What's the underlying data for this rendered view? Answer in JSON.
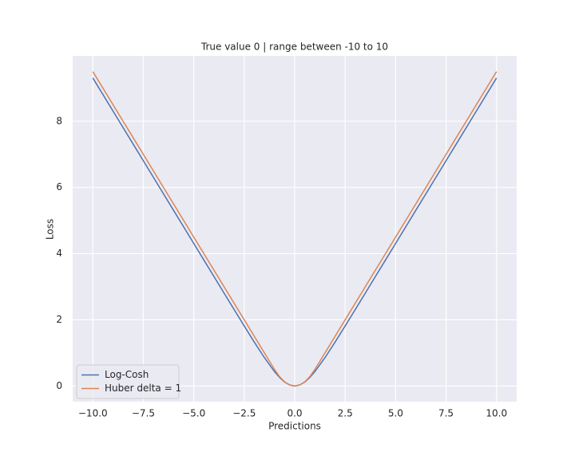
{
  "chart_data": {
    "type": "line",
    "title": "True value 0 | range between -10 to 10",
    "x_label": "Predictions",
    "y_label": "Loss",
    "x": [
      -10,
      -9.5,
      -9,
      -8.5,
      -8,
      -7.5,
      -7,
      -6.5,
      -6,
      -5.5,
      -5,
      -4.5,
      -4,
      -3.5,
      -3,
      -2.5,
      -2,
      -1.5,
      -1,
      -0.75,
      -0.5,
      -0.25,
      0,
      0.25,
      0.5,
      0.75,
      1,
      1.5,
      2,
      2.5,
      3,
      3.5,
      4,
      4.5,
      5,
      5.5,
      6,
      6.5,
      7,
      7.5,
      8,
      8.5,
      9,
      9.5,
      10
    ],
    "series": [
      {
        "name": "Log-Cosh",
        "color": "#4c72b0",
        "values": [
          9.30685,
          8.80685,
          8.30685,
          7.80685,
          7.30685,
          6.80685,
          6.30685,
          5.80685,
          5.30686,
          4.80686,
          4.3069,
          3.80698,
          3.30719,
          2.80776,
          2.30933,
          1.81357,
          1.325,
          0.85544,
          0.43378,
          0.25832,
          0.12011,
          0.03093,
          0,
          0.03093,
          0.12011,
          0.25832,
          0.43378,
          0.85544,
          1.325,
          1.81357,
          2.30933,
          2.80776,
          3.30719,
          3.80698,
          4.3069,
          4.80686,
          5.30686,
          5.80685,
          6.30685,
          6.80685,
          7.30685,
          7.80685,
          8.30685,
          8.80685,
          9.30685
        ]
      },
      {
        "name": "Huber delta = 1",
        "color": "#dd8452",
        "values": [
          9.5,
          9,
          8.5,
          8,
          7.5,
          7,
          6.5,
          6,
          5.5,
          5,
          4.5,
          4,
          3.5,
          3,
          2.5,
          2,
          1.5,
          1,
          0.5,
          0.28125,
          0.125,
          0.03125,
          0,
          0.03125,
          0.125,
          0.28125,
          0.5,
          1,
          1.5,
          2,
          2.5,
          3,
          3.5,
          4,
          4.5,
          5,
          5.5,
          6,
          6.5,
          7,
          7.5,
          8,
          8.5,
          9,
          9.5
        ]
      }
    ],
    "xlim": [
      -11,
      11
    ],
    "ylim": [
      -0.475,
      9.975
    ],
    "xticks": [
      {
        "value": -10,
        "label": "−10.0"
      },
      {
        "value": -7.5,
        "label": "−7.5"
      },
      {
        "value": -5,
        "label": "−5.0"
      },
      {
        "value": -2.5,
        "label": "−2.5"
      },
      {
        "value": 0,
        "label": "0.0"
      },
      {
        "value": 2.5,
        "label": "2.5"
      },
      {
        "value": 5,
        "label": "5.0"
      },
      {
        "value": 7.5,
        "label": "7.5"
      },
      {
        "value": 10,
        "label": "10.0"
      }
    ],
    "yticks": [
      0,
      2,
      4,
      6,
      8
    ],
    "grid": true,
    "legend": "lower left"
  }
}
